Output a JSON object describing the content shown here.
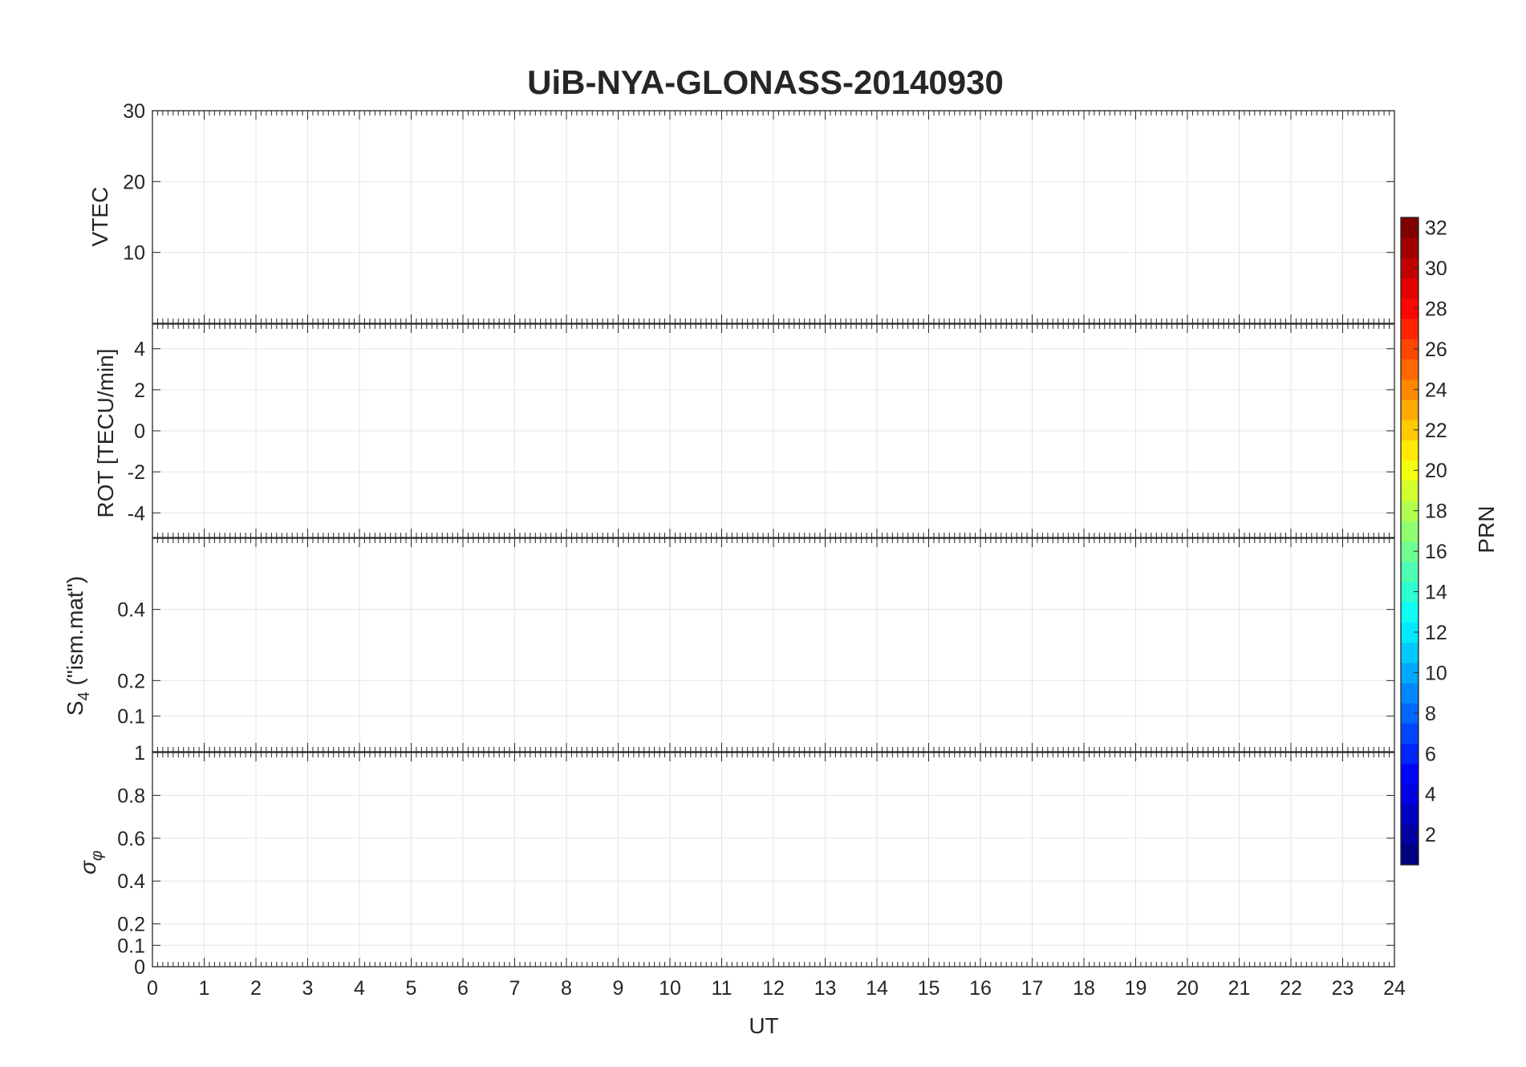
{
  "chart_data": [
    {
      "type": "line",
      "title": "UiB-NYA-GLONASS-20140930",
      "xlabel": "",
      "ylabel": "VTEC",
      "xlim": [
        0,
        24
      ],
      "ylim": [
        0,
        30
      ],
      "yticks": [
        10,
        20,
        30
      ],
      "grid": true,
      "series_color_by": "PRN (colorbar)"
    },
    {
      "type": "line",
      "xlabel": "",
      "ylabel": "ROT [TECU/min]",
      "xlim": [
        0,
        24
      ],
      "ylim": [
        -5.2,
        5.2
      ],
      "yticks": [
        -4,
        -2,
        0,
        2,
        4
      ],
      "grid": true
    },
    {
      "type": "line",
      "xlabel": "",
      "ylabel": "S4 (\"ism.mat\")",
      "ylabel_main": "S",
      "ylabel_sub": "4",
      "ylabel_rest": " (\"ism.mat\")",
      "xlim": [
        0,
        24
      ],
      "ylim": [
        0,
        0.6
      ],
      "yticks": [
        0.1,
        0.2,
        0.4
      ],
      "grid": true
    },
    {
      "type": "line",
      "xlabel": "UT",
      "ylabel": "σφ",
      "ylabel_main": "σ",
      "ylabel_sub": "φ",
      "xlim": [
        0,
        24
      ],
      "ylim": [
        0,
        1
      ],
      "yticks": [
        0,
        0.1,
        0.2,
        0.4,
        0.6,
        0.8
      ],
      "extra_tick_top": "1",
      "xticks": [
        0,
        1,
        2,
        3,
        4,
        5,
        6,
        7,
        8,
        9,
        10,
        11,
        12,
        13,
        14,
        15,
        16,
        17,
        18,
        19,
        20,
        21,
        22,
        23,
        24
      ],
      "grid": true
    }
  ],
  "colorbar": {
    "label": "PRN",
    "range": [
      1,
      32
    ],
    "ticks": [
      2,
      4,
      6,
      8,
      10,
      12,
      14,
      16,
      18,
      20,
      22,
      24,
      26,
      28,
      30,
      32
    ],
    "colormap": "jet"
  },
  "colors": {
    "axis": "#262626",
    "grid": "#e6e6e6"
  }
}
